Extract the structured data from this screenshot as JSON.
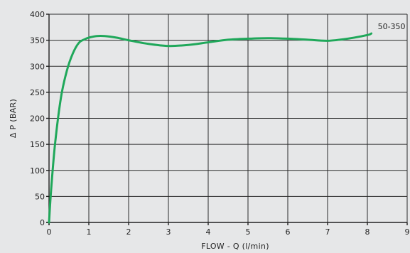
{
  "chart_data": {
    "type": "line",
    "title": "",
    "xlabel": "FLOW - Q (l/min)",
    "ylabel": "Δ P (BAR)",
    "xlim": [
      0,
      9
    ],
    "ylim": [
      0,
      400
    ],
    "x_ticks": [
      0,
      1,
      2,
      3,
      4,
      5,
      6,
      7,
      8,
      9
    ],
    "y_ticks": [
      0,
      50,
      100,
      150,
      200,
      250,
      300,
      350,
      400
    ],
    "grid": true,
    "legend": "none",
    "series": [
      {
        "name": "50-350",
        "color": "#1fa85a",
        "x": [
          0.0,
          0.05,
          0.15,
          0.3,
          0.45,
          0.6,
          0.75,
          0.9,
          1.0,
          1.2,
          1.4,
          1.7,
          2.0,
          2.5,
          3.0,
          3.5,
          4.0,
          4.5,
          5.0,
          5.5,
          6.0,
          6.5,
          7.0,
          7.5,
          8.0,
          8.1
        ],
        "y": [
          0,
          60,
          150,
          240,
          292,
          325,
          345,
          352,
          355,
          358,
          358,
          355,
          350,
          343,
          339,
          341,
          346,
          351,
          353,
          354,
          353,
          351,
          349,
          353,
          360,
          363
        ]
      }
    ]
  }
}
